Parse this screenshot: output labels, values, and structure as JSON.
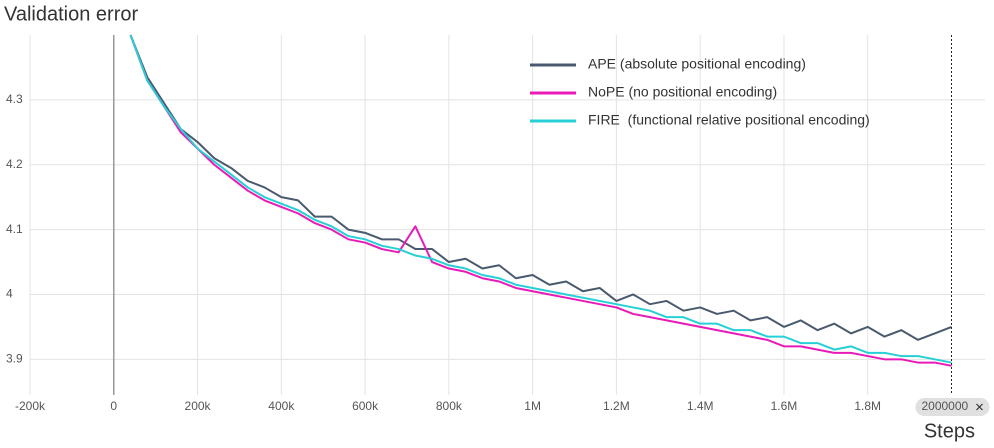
{
  "chart_data": {
    "type": "line",
    "title": "Validation error",
    "x_label": "Steps",
    "x": [
      40000,
      80000,
      120000,
      160000,
      200000,
      240000,
      280000,
      320000,
      360000,
      400000,
      440000,
      480000,
      520000,
      560000,
      600000,
      640000,
      680000,
      720000,
      760000,
      800000,
      840000,
      880000,
      920000,
      960000,
      1000000,
      1040000,
      1080000,
      1120000,
      1160000,
      1200000,
      1240000,
      1280000,
      1320000,
      1360000,
      1400000,
      1440000,
      1480000,
      1520000,
      1560000,
      1600000,
      1640000,
      1680000,
      1720000,
      1760000,
      1800000,
      1840000,
      1880000,
      1920000,
      1960000,
      2000000
    ],
    "series": [
      {
        "name": "APE (absolute positional encoding)",
        "color": "#4a5a6e",
        "values": [
          4.4,
          4.335,
          4.295,
          4.255,
          4.235,
          4.21,
          4.195,
          4.175,
          4.165,
          4.15,
          4.145,
          4.12,
          4.12,
          4.1,
          4.095,
          4.085,
          4.085,
          4.07,
          4.07,
          4.05,
          4.055,
          4.04,
          4.045,
          4.025,
          4.03,
          4.015,
          4.02,
          4.005,
          4.01,
          3.99,
          4.0,
          3.985,
          3.99,
          3.975,
          3.98,
          3.97,
          3.975,
          3.96,
          3.965,
          3.95,
          3.96,
          3.945,
          3.955,
          3.94,
          3.95,
          3.935,
          3.945,
          3.93,
          3.94,
          3.95
        ]
      },
      {
        "name": "NoPE (no positional encoding)",
        "color": "#e81bb8",
        "values": [
          4.4,
          4.33,
          4.29,
          4.25,
          4.225,
          4.2,
          4.18,
          4.16,
          4.145,
          4.135,
          4.125,
          4.11,
          4.1,
          4.085,
          4.08,
          4.07,
          4.065,
          4.105,
          4.05,
          4.04,
          4.035,
          4.025,
          4.02,
          4.01,
          4.005,
          4.0,
          3.995,
          3.99,
          3.985,
          3.98,
          3.97,
          3.965,
          3.96,
          3.955,
          3.95,
          3.945,
          3.94,
          3.935,
          3.93,
          3.92,
          3.92,
          3.915,
          3.91,
          3.91,
          3.905,
          3.9,
          3.9,
          3.895,
          3.895,
          3.89
        ]
      },
      {
        "name": "FIRE  (functional relative positional encoding)",
        "color": "#27cfd6",
        "values": [
          4.4,
          4.33,
          4.29,
          4.255,
          4.225,
          4.205,
          4.185,
          4.165,
          4.15,
          4.14,
          4.13,
          4.115,
          4.105,
          4.09,
          4.085,
          4.075,
          4.07,
          4.06,
          4.055,
          4.045,
          4.04,
          4.03,
          4.025,
          4.015,
          4.01,
          4.005,
          4.0,
          3.995,
          3.99,
          3.985,
          3.98,
          3.975,
          3.965,
          3.965,
          3.955,
          3.955,
          3.945,
          3.945,
          3.935,
          3.935,
          3.925,
          3.925,
          3.915,
          3.92,
          3.91,
          3.91,
          3.905,
          3.905,
          3.9,
          3.895
        ]
      }
    ],
    "xlim": [
      -200000,
      2080000
    ],
    "ylim": [
      3.845,
      4.4
    ],
    "xticks": [
      {
        "value": -200000,
        "label": "-200k"
      },
      0,
      {
        "value": 200000,
        "label": "200k"
      },
      {
        "value": 400000,
        "label": "400k"
      },
      {
        "value": 600000,
        "label": "600k"
      },
      {
        "value": 800000,
        "label": "800k"
      },
      {
        "value": 1000000,
        "label": "1M"
      },
      {
        "value": 1200000,
        "label": "1.2M"
      },
      {
        "value": 1400000,
        "label": "1.4M"
      },
      {
        "value": 1600000,
        "label": "1.6M"
      },
      {
        "value": 1800000,
        "label": "1.8M"
      }
    ],
    "yticks": [
      3.9,
      4,
      4.1,
      4.2,
      4.3
    ],
    "grid": true,
    "legend": "top-right",
    "cursor": {
      "value": 2000000,
      "label": "2000000"
    }
  }
}
